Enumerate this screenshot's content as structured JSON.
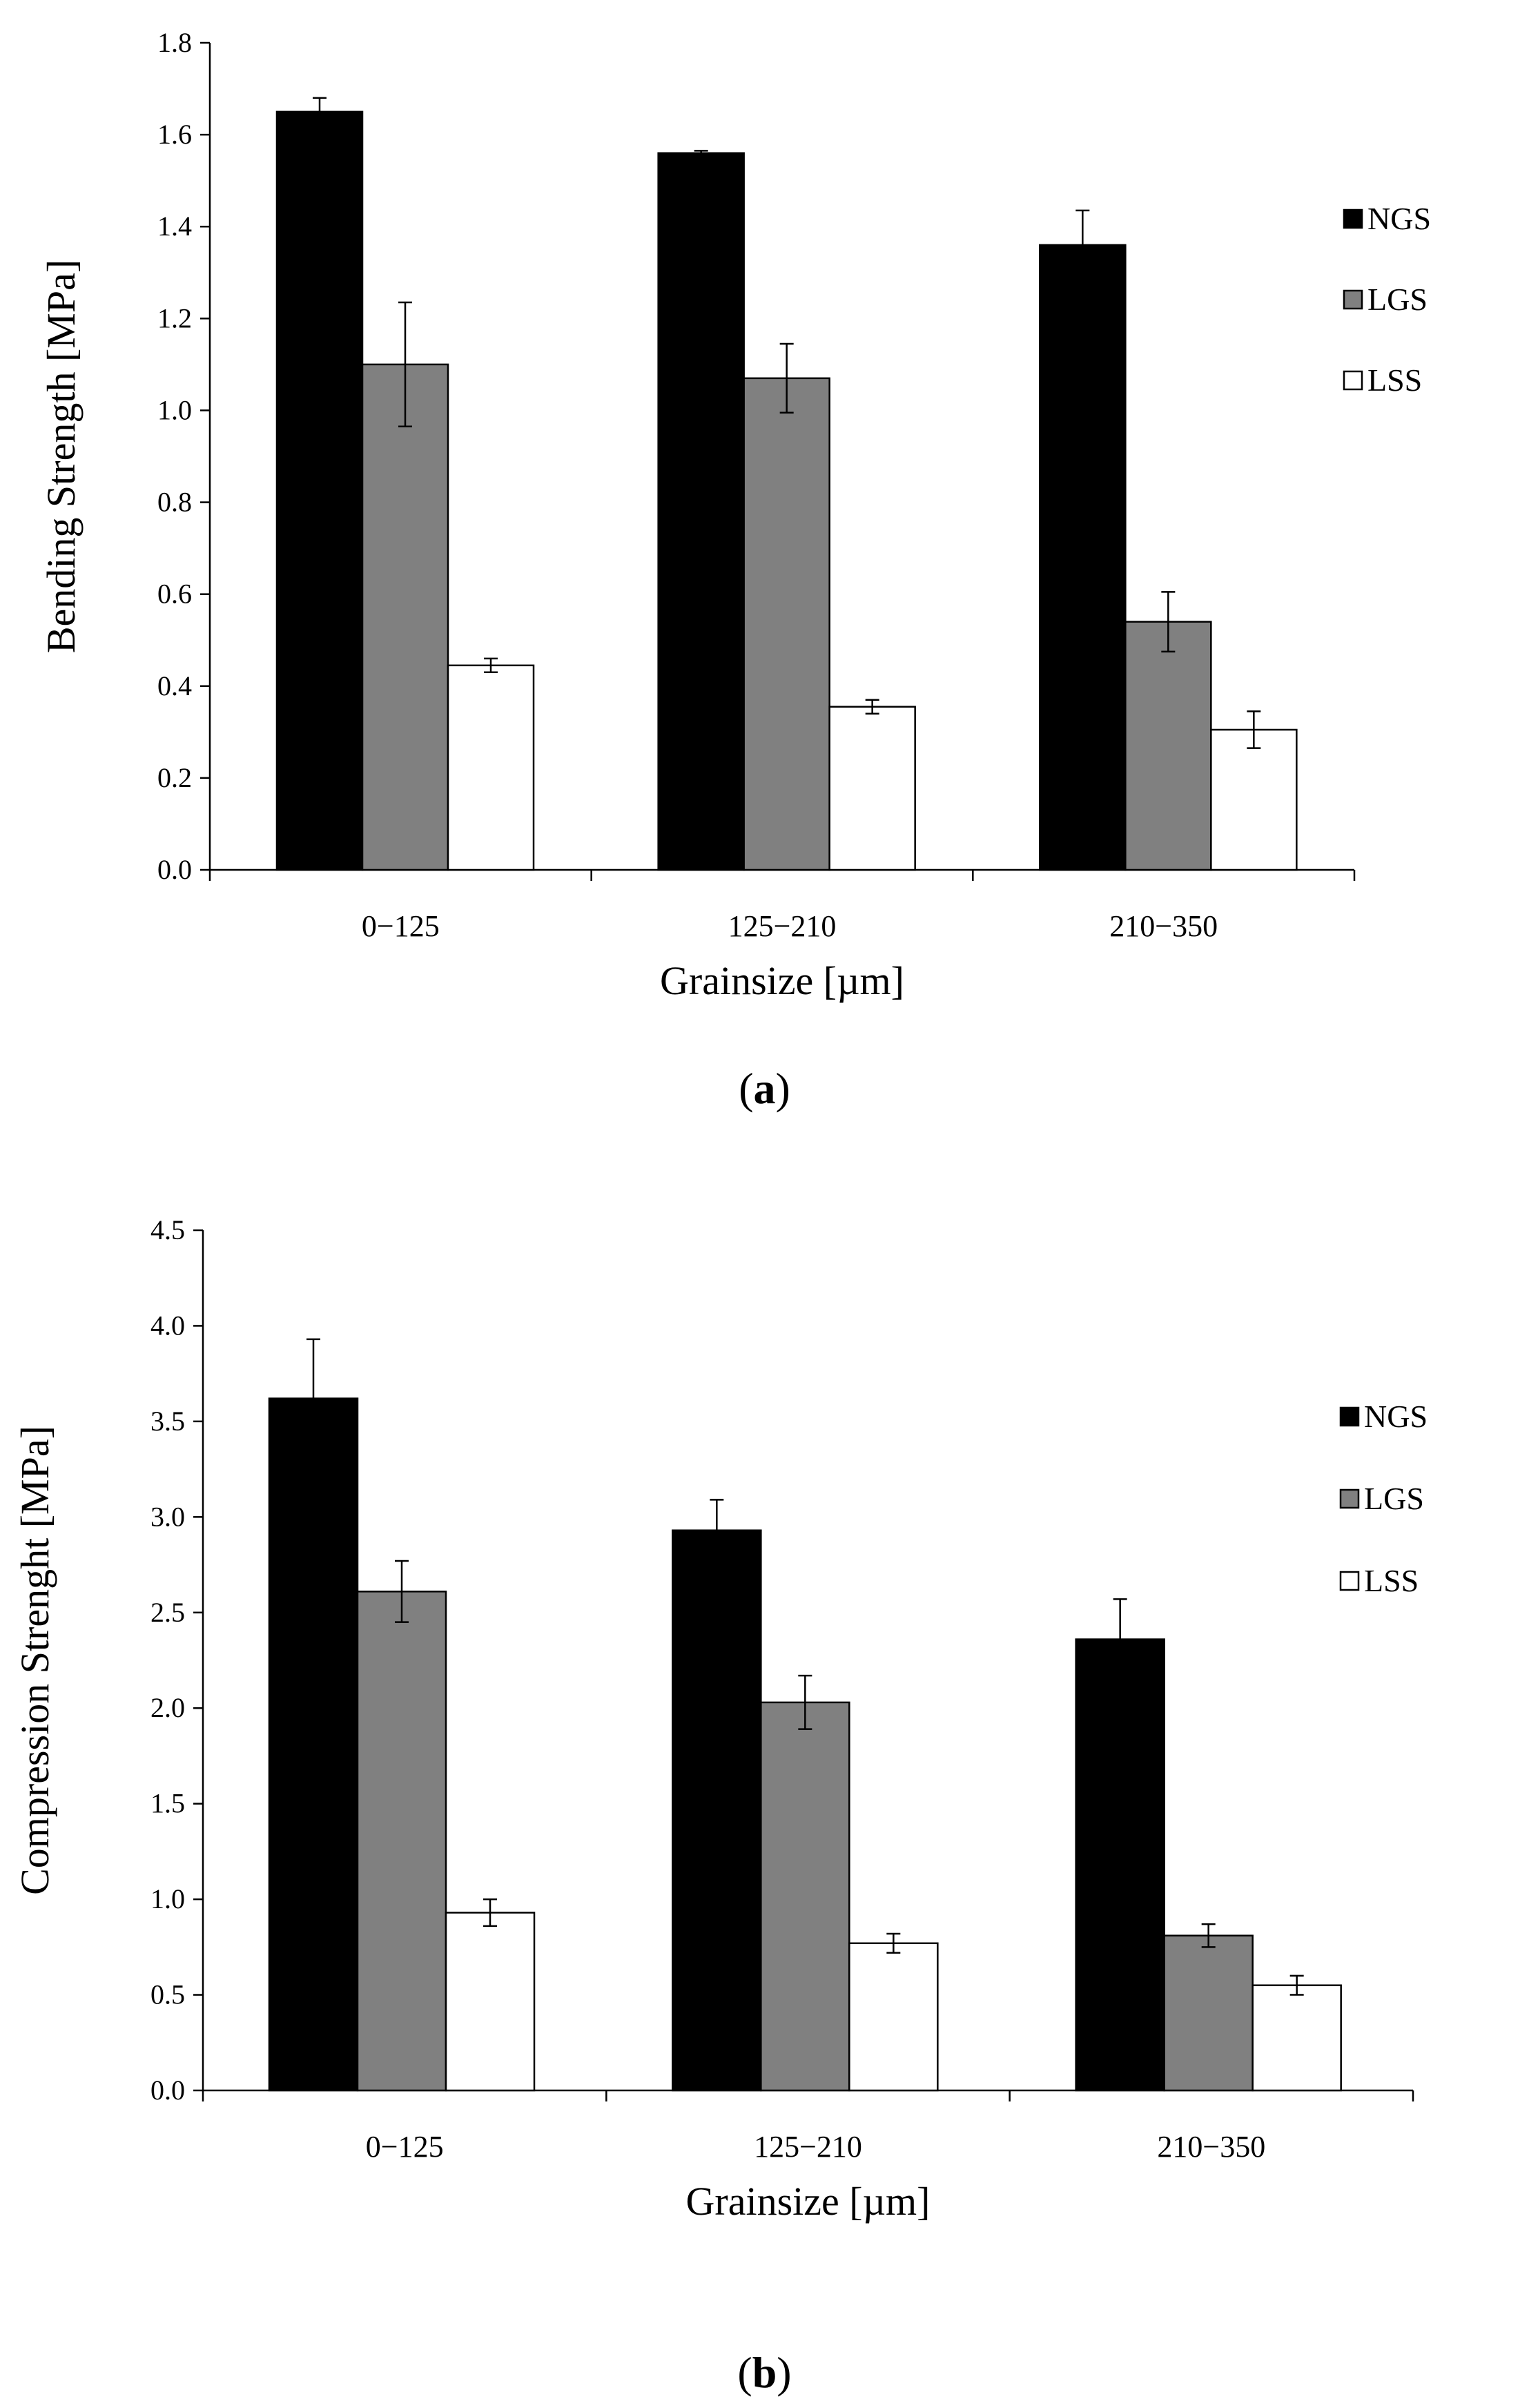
{
  "chart_data": [
    {
      "type": "bar",
      "panel_label": "a",
      "title": "",
      "xlabel": "Grainsize [µm]",
      "ylabel": "Bending Strength [MPa]",
      "categories": [
        "0−125",
        "125−210",
        "210−350"
      ],
      "ylim": [
        0,
        1.8
      ],
      "ytick_values": [
        0,
        0.2,
        0.4,
        0.6,
        0.8,
        1.0,
        1.2,
        1.4,
        1.6,
        1.8
      ],
      "ytick_labels": [
        "0.0",
        "0.2",
        "0.4",
        "0.6",
        "0.8",
        "1.0",
        "1.2",
        "1.4",
        "1.6",
        "1.8"
      ],
      "grid": false,
      "legend_position": "right",
      "series": [
        {
          "name": "NGS",
          "color": "#000000",
          "values": [
            1.65,
            1.56,
            1.36
          ],
          "errors": [
            0.03,
            0.005,
            0.075
          ]
        },
        {
          "name": "LGS",
          "color": "#808080",
          "values": [
            1.1,
            1.07,
            0.54
          ],
          "errors": [
            0.135,
            0.075,
            0.065
          ]
        },
        {
          "name": "LSS",
          "color": "#ffffff",
          "values": [
            0.445,
            0.355,
            0.305
          ],
          "errors": [
            0.015,
            0.015,
            0.04
          ]
        }
      ]
    },
    {
      "type": "bar",
      "panel_label": "b",
      "title": "",
      "xlabel": "Grainsize [µm]",
      "ylabel": "Compression Strenght  [MPa]",
      "categories": [
        "0−125",
        "125−210",
        "210−350"
      ],
      "ylim": [
        0,
        4.5
      ],
      "ytick_values": [
        0,
        0.5,
        1.0,
        1.5,
        2.0,
        2.5,
        3.0,
        3.5,
        4.0,
        4.5
      ],
      "ytick_labels": [
        "0.0",
        "0.5",
        "1.0",
        "1.5",
        "2.0",
        "2.5",
        "3.0",
        "3.5",
        "4.0",
        "4.5"
      ],
      "grid": false,
      "legend_position": "right",
      "series": [
        {
          "name": "NGS",
          "color": "#000000",
          "values": [
            3.62,
            2.93,
            2.36
          ],
          "errors": [
            0.31,
            0.16,
            0.21
          ]
        },
        {
          "name": "LGS",
          "color": "#808080",
          "values": [
            2.61,
            2.03,
            0.81
          ],
          "errors": [
            0.16,
            0.14,
            0.06
          ]
        },
        {
          "name": "LSS",
          "color": "#ffffff",
          "values": [
            0.93,
            0.77,
            0.55
          ],
          "errors": [
            0.07,
            0.05,
            0.05
          ]
        }
      ]
    }
  ]
}
